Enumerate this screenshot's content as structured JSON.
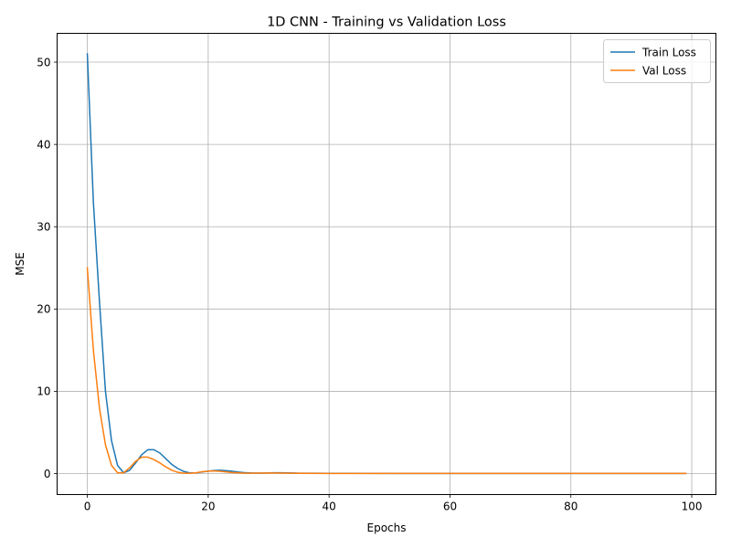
{
  "chart_data": {
    "type": "line",
    "title": "1D CNN - Training vs Validation Loss",
    "xlabel": "Epochs",
    "ylabel": "MSE",
    "xlim": [
      -5,
      104
    ],
    "ylim": [
      -2.55,
      53.5
    ],
    "xticks": [
      0,
      20,
      40,
      60,
      80,
      100
    ],
    "yticks": [
      0,
      10,
      20,
      30,
      40,
      50
    ],
    "grid": true,
    "legend_position": "top-right",
    "series": [
      {
        "name": "Train Loss",
        "color": "#1f77b4",
        "points": [
          [
            0,
            51.0
          ],
          [
            1,
            33.0
          ],
          [
            2,
            21.0
          ],
          [
            3,
            10.0
          ],
          [
            4,
            4.0
          ],
          [
            5,
            1.0
          ],
          [
            6,
            0.1
          ],
          [
            7,
            0.4
          ],
          [
            8,
            1.3
          ],
          [
            9,
            2.3
          ],
          [
            10,
            2.9
          ],
          [
            11,
            2.9
          ],
          [
            12,
            2.5
          ],
          [
            13,
            1.8
          ],
          [
            14,
            1.1
          ],
          [
            15,
            0.6
          ],
          [
            16,
            0.25
          ],
          [
            17,
            0.08
          ],
          [
            18,
            0.08
          ],
          [
            19,
            0.2
          ],
          [
            20,
            0.3
          ],
          [
            21,
            0.38
          ],
          [
            22,
            0.4
          ],
          [
            23,
            0.35
          ],
          [
            24,
            0.28
          ],
          [
            25,
            0.18
          ],
          [
            26,
            0.12
          ],
          [
            27,
            0.08
          ],
          [
            28,
            0.06
          ],
          [
            29,
            0.06
          ],
          [
            30,
            0.08
          ],
          [
            31,
            0.1
          ],
          [
            32,
            0.1
          ],
          [
            33,
            0.09
          ],
          [
            34,
            0.07
          ],
          [
            35,
            0.05
          ],
          [
            37,
            0.04
          ],
          [
            40,
            0.03
          ],
          [
            50,
            0.02
          ],
          [
            60,
            0.02
          ],
          [
            70,
            0.02
          ],
          [
            80,
            0.02
          ],
          [
            90,
            0.02
          ],
          [
            99,
            0.02
          ]
        ]
      },
      {
        "name": "Val Loss",
        "color": "#ff7f0e",
        "points": [
          [
            0,
            25.0
          ],
          [
            1,
            15.0
          ],
          [
            2,
            8.0
          ],
          [
            3,
            3.5
          ],
          [
            4,
            1.0
          ],
          [
            5,
            0.1
          ],
          [
            6,
            0.1
          ],
          [
            7,
            0.7
          ],
          [
            8,
            1.5
          ],
          [
            9,
            2.0
          ],
          [
            10,
            2.0
          ],
          [
            11,
            1.7
          ],
          [
            12,
            1.3
          ],
          [
            13,
            0.8
          ],
          [
            14,
            0.4
          ],
          [
            15,
            0.15
          ],
          [
            16,
            0.05
          ],
          [
            17,
            0.04
          ],
          [
            18,
            0.1
          ],
          [
            19,
            0.22
          ],
          [
            20,
            0.3
          ],
          [
            21,
            0.32
          ],
          [
            22,
            0.28
          ],
          [
            23,
            0.2
          ],
          [
            24,
            0.13
          ],
          [
            25,
            0.08
          ],
          [
            26,
            0.05
          ],
          [
            27,
            0.05
          ],
          [
            28,
            0.06
          ],
          [
            30,
            0.07
          ],
          [
            32,
            0.06
          ],
          [
            34,
            0.04
          ],
          [
            36,
            0.03
          ],
          [
            40,
            0.02
          ],
          [
            50,
            0.02
          ],
          [
            60,
            0.02
          ],
          [
            70,
            0.02
          ],
          [
            80,
            0.02
          ],
          [
            90,
            0.02
          ],
          [
            99,
            0.02
          ]
        ]
      }
    ]
  }
}
